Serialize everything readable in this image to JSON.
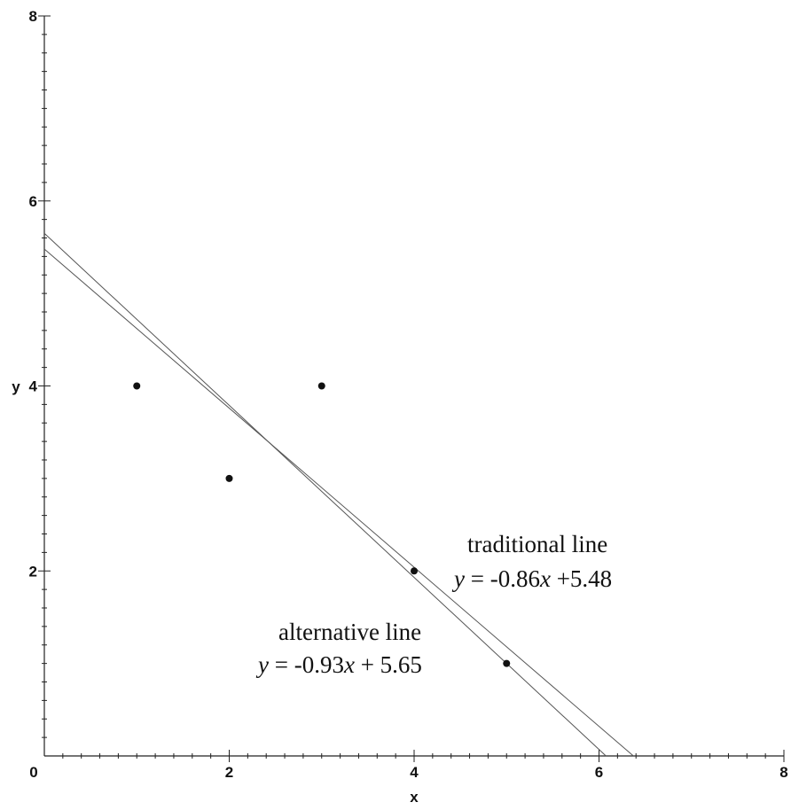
{
  "chart_data": {
    "type": "scatter",
    "title": "",
    "xlabel": "x",
    "ylabel": "y",
    "xlim": [
      0,
      8
    ],
    "ylim": [
      0,
      8
    ],
    "x_ticks": [
      0,
      2,
      4,
      6,
      8
    ],
    "y_ticks": [
      0,
      2,
      4,
      6,
      8
    ],
    "x_tick_labels": [
      "0",
      "2",
      "4",
      "6",
      "8"
    ],
    "y_tick_labels": [
      "0",
      "2",
      "4",
      "6",
      "8"
    ],
    "grid": false,
    "points": [
      {
        "x": 1,
        "y": 4
      },
      {
        "x": 2,
        "y": 3
      },
      {
        "x": 3,
        "y": 4
      },
      {
        "x": 4,
        "y": 2
      },
      {
        "x": 5,
        "y": 1
      }
    ],
    "lines": [
      {
        "name": "traditional line",
        "slope": -0.86,
        "intercept": 5.48,
        "eq_y": "y",
        "eq_rest": " = -0.86",
        "eq_x": "x",
        "eq_tail": " +5.48"
      },
      {
        "name": "alternative line",
        "slope": -0.93,
        "intercept": 5.65,
        "eq_y": "y",
        "eq_rest": " = -0.93",
        "eq_x": "x",
        "eq_tail": " + 5.65"
      }
    ],
    "colors": {
      "points": "#111111",
      "lines": "#555555",
      "axes": "#222222"
    }
  }
}
